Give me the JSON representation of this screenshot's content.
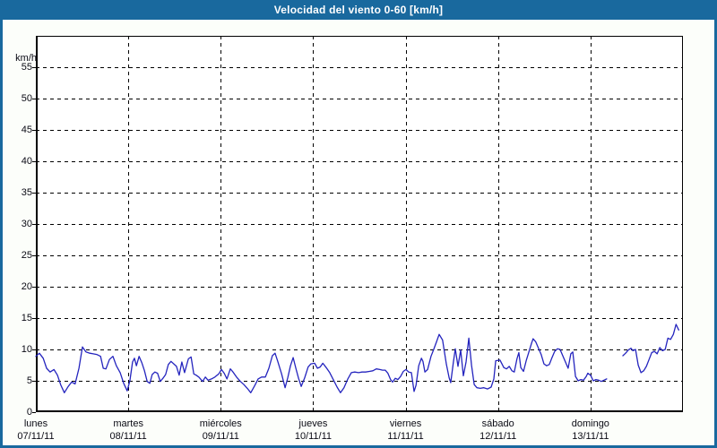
{
  "window": {
    "title": "Velocidad del viento 0-60 [km/h]"
  },
  "colors": {
    "frame": "#19699E",
    "titlebar": "#19699E",
    "page_bg": "#FCFEFA",
    "plot_bg": "#FFFFFF",
    "grid": "#000000",
    "axis": "#000000",
    "line": "#2424BE",
    "label_text": "#0A0A14",
    "title_text": "#FFFFFF"
  },
  "chart_data": {
    "type": "line",
    "title": "Velocidad del viento 0-60 [km/h]",
    "ylabel": "km/h",
    "y_unit_label": "km/h",
    "ylim": [
      0,
      60
    ],
    "y_ticks": [
      0,
      5,
      10,
      15,
      20,
      25,
      30,
      35,
      40,
      45,
      50,
      55
    ],
    "x_unit": "hours since lunes 00:00",
    "xlim": [
      0,
      168
    ],
    "grid": "dashed black, horizontal every 5 km/h, vertical every day",
    "legend_position": "none",
    "x_tick_days": [
      {
        "name": "lunes",
        "date": "07/11/11"
      },
      {
        "name": "martes",
        "date": "08/11/11"
      },
      {
        "name": "miércoles",
        "date": "09/11/11"
      },
      {
        "name": "jueves",
        "date": "10/11/11"
      },
      {
        "name": "viernes",
        "date": "11/11/11"
      },
      {
        "name": "sábado",
        "date": "12/11/11"
      },
      {
        "name": "domingo",
        "date": "13/11/11"
      }
    ],
    "series": [
      {
        "name": "velocidad del viento",
        "unit": "km/h",
        "note": "data gap domingo ~04:00-08:00",
        "segments": [
          [
            [
              0.0,
              8.9
            ],
            [
              0.9,
              9.4
            ],
            [
              1.9,
              8.6
            ],
            [
              2.8,
              7.0
            ],
            [
              3.7,
              6.4
            ],
            [
              4.7,
              6.8
            ],
            [
              5.6,
              5.9
            ],
            [
              6.5,
              4.3
            ],
            [
              7.4,
              3.1
            ],
            [
              8.4,
              4.1
            ],
            [
              9.3,
              4.8
            ],
            [
              10.2,
              4.5
            ],
            [
              11.2,
              7.0
            ],
            [
              12.1,
              10.4
            ],
            [
              13.0,
              9.6
            ],
            [
              14.0,
              9.4
            ],
            [
              14.9,
              9.3
            ],
            [
              15.8,
              9.2
            ],
            [
              16.8,
              8.9
            ],
            [
              17.5,
              7.0
            ],
            [
              18.2,
              6.9
            ],
            [
              19.1,
              8.4
            ],
            [
              20.0,
              8.9
            ],
            [
              20.9,
              7.4
            ],
            [
              21.9,
              6.3
            ],
            [
              22.8,
              4.6
            ],
            [
              23.7,
              3.4
            ],
            [
              24.4,
              5.0
            ],
            [
              25.1,
              8.0
            ],
            [
              25.6,
              8.6
            ],
            [
              26.1,
              7.4
            ],
            [
              26.8,
              8.9
            ],
            [
              27.5,
              7.9
            ],
            [
              28.2,
              6.6
            ],
            [
              28.9,
              4.9
            ],
            [
              29.6,
              4.6
            ],
            [
              30.2,
              6.0
            ],
            [
              30.9,
              6.4
            ],
            [
              31.6,
              6.2
            ],
            [
              32.3,
              4.9
            ],
            [
              33.0,
              5.4
            ],
            [
              33.7,
              6.0
            ],
            [
              34.4,
              7.6
            ],
            [
              35.1,
              8.1
            ],
            [
              35.8,
              7.7
            ],
            [
              36.5,
              7.3
            ],
            [
              37.2,
              5.9
            ],
            [
              37.9,
              8.0
            ],
            [
              38.6,
              6.3
            ],
            [
              39.6,
              8.5
            ],
            [
              40.3,
              8.8
            ],
            [
              41.0,
              6.1
            ],
            [
              41.6,
              5.9
            ],
            [
              42.3,
              5.6
            ],
            [
              43.3,
              4.9
            ],
            [
              44.0,
              5.6
            ],
            [
              44.7,
              5.1
            ],
            [
              45.6,
              5.3
            ],
            [
              46.5,
              5.6
            ],
            [
              47.5,
              6.1
            ],
            [
              48.2,
              6.8
            ],
            [
              48.9,
              6.2
            ],
            [
              49.6,
              5.3
            ],
            [
              50.5,
              6.9
            ],
            [
              51.2,
              6.4
            ],
            [
              52.1,
              5.6
            ],
            [
              53.1,
              4.9
            ],
            [
              54.0,
              4.4
            ],
            [
              54.9,
              3.8
            ],
            [
              55.8,
              3.1
            ],
            [
              56.8,
              4.2
            ],
            [
              57.7,
              5.3
            ],
            [
              58.6,
              5.6
            ],
            [
              59.6,
              5.6
            ],
            [
              60.5,
              7.0
            ],
            [
              61.4,
              9.0
            ],
            [
              62.1,
              9.4
            ],
            [
              62.8,
              8.1
            ],
            [
              63.8,
              6.1
            ],
            [
              64.7,
              3.9
            ],
            [
              65.4,
              5.5
            ],
            [
              66.1,
              7.4
            ],
            [
              66.8,
              8.7
            ],
            [
              67.5,
              7.0
            ],
            [
              68.2,
              5.4
            ],
            [
              68.9,
              4.1
            ],
            [
              69.8,
              5.5
            ],
            [
              70.7,
              7.2
            ],
            [
              71.4,
              7.7
            ],
            [
              72.4,
              7.8
            ],
            [
              73.1,
              7.0
            ],
            [
              73.8,
              7.2
            ],
            [
              74.5,
              7.8
            ],
            [
              75.4,
              7.1
            ],
            [
              76.3,
              6.3
            ],
            [
              77.3,
              5.1
            ],
            [
              78.2,
              4.0
            ],
            [
              79.1,
              3.1
            ],
            [
              80.0,
              3.9
            ],
            [
              81.0,
              5.3
            ],
            [
              81.9,
              6.3
            ],
            [
              82.8,
              6.4
            ],
            [
              83.8,
              6.3
            ],
            [
              84.7,
              6.4
            ],
            [
              85.6,
              6.4
            ],
            [
              86.6,
              6.5
            ],
            [
              87.5,
              6.6
            ],
            [
              88.4,
              6.9
            ],
            [
              89.3,
              6.8
            ],
            [
              90.0,
              6.7
            ],
            [
              90.7,
              6.7
            ],
            [
              91.4,
              6.2
            ],
            [
              92.1,
              5.2
            ],
            [
              92.6,
              4.8
            ],
            [
              93.3,
              5.4
            ],
            [
              94.0,
              5.2
            ],
            [
              94.7,
              5.7
            ],
            [
              95.4,
              6.5
            ],
            [
              96.1,
              6.8
            ],
            [
              96.8,
              6.4
            ],
            [
              97.5,
              6.3
            ],
            [
              98.2,
              3.3
            ],
            [
              98.7,
              4.3
            ],
            [
              99.4,
              7.4
            ],
            [
              100.1,
              8.6
            ],
            [
              100.5,
              8.1
            ],
            [
              101.0,
              6.4
            ],
            [
              101.7,
              6.8
            ],
            [
              102.6,
              8.9
            ],
            [
              103.3,
              10.0
            ],
            [
              104.0,
              11.2
            ],
            [
              104.7,
              12.4
            ],
            [
              105.6,
              11.5
            ],
            [
              106.1,
              9.5
            ],
            [
              106.6,
              7.6
            ],
            [
              107.3,
              5.5
            ],
            [
              107.7,
              4.7
            ],
            [
              108.4,
              8.0
            ],
            [
              108.9,
              10.1
            ],
            [
              109.6,
              7.3
            ],
            [
              110.3,
              9.9
            ],
            [
              111.0,
              5.8
            ],
            [
              111.7,
              8.0
            ],
            [
              112.4,
              11.8
            ],
            [
              113.1,
              7.5
            ],
            [
              113.8,
              4.4
            ],
            [
              114.5,
              3.9
            ],
            [
              115.4,
              3.8
            ],
            [
              116.3,
              3.9
            ],
            [
              117.3,
              3.7
            ],
            [
              118.2,
              4.0
            ],
            [
              118.9,
              5.3
            ],
            [
              119.4,
              8.2
            ],
            [
              120.5,
              8.3
            ],
            [
              121.5,
              7.1
            ],
            [
              122.2,
              6.9
            ],
            [
              122.9,
              7.3
            ],
            [
              123.6,
              6.6
            ],
            [
              124.2,
              6.4
            ],
            [
              124.9,
              8.5
            ],
            [
              125.4,
              9.5
            ],
            [
              125.9,
              7.1
            ],
            [
              126.6,
              6.5
            ],
            [
              127.3,
              8.2
            ],
            [
              128.0,
              9.6
            ],
            [
              128.7,
              11.0
            ],
            [
              129.1,
              11.7
            ],
            [
              129.8,
              11.2
            ],
            [
              130.5,
              10.2
            ],
            [
              131.2,
              9.2
            ],
            [
              131.9,
              7.7
            ],
            [
              132.6,
              7.4
            ],
            [
              133.3,
              7.6
            ],
            [
              134.0,
              8.7
            ],
            [
              134.7,
              9.7
            ],
            [
              135.4,
              10.1
            ],
            [
              136.1,
              10.0
            ],
            [
              136.8,
              9.0
            ],
            [
              137.5,
              8.0
            ],
            [
              138.2,
              7.0
            ],
            [
              138.9,
              9.3
            ],
            [
              139.4,
              9.6
            ],
            [
              140.1,
              5.7
            ],
            [
              140.8,
              5.0
            ],
            [
              141.5,
              5.2
            ],
            [
              142.2,
              5.1
            ],
            [
              142.9,
              5.7
            ],
            [
              143.3,
              6.2
            ],
            [
              144.0,
              5.9
            ],
            [
              144.7,
              5.0
            ],
            [
              145.4,
              5.2
            ],
            [
              146.1,
              5.1
            ],
            [
              146.8,
              4.9
            ],
            [
              147.5,
              5.1
            ],
            [
              148.2,
              5.3
            ]
          ],
          [
            [
              152.4,
              9.0
            ],
            [
              153.1,
              9.4
            ],
            [
              153.8,
              9.9
            ],
            [
              154.5,
              10.2
            ],
            [
              155.0,
              9.8
            ],
            [
              155.7,
              10.0
            ],
            [
              156.4,
              7.5
            ],
            [
              157.1,
              6.3
            ],
            [
              157.8,
              6.6
            ],
            [
              158.5,
              7.3
            ],
            [
              159.2,
              8.4
            ],
            [
              159.9,
              9.5
            ],
            [
              160.6,
              9.7
            ],
            [
              161.3,
              9.3
            ],
            [
              162.0,
              10.3
            ],
            [
              162.7,
              9.8
            ],
            [
              163.4,
              10.0
            ],
            [
              164.1,
              11.8
            ],
            [
              164.8,
              11.6
            ],
            [
              165.5,
              12.4
            ],
            [
              166.2,
              14.0
            ],
            [
              166.9,
              13.1
            ]
          ]
        ]
      }
    ]
  }
}
